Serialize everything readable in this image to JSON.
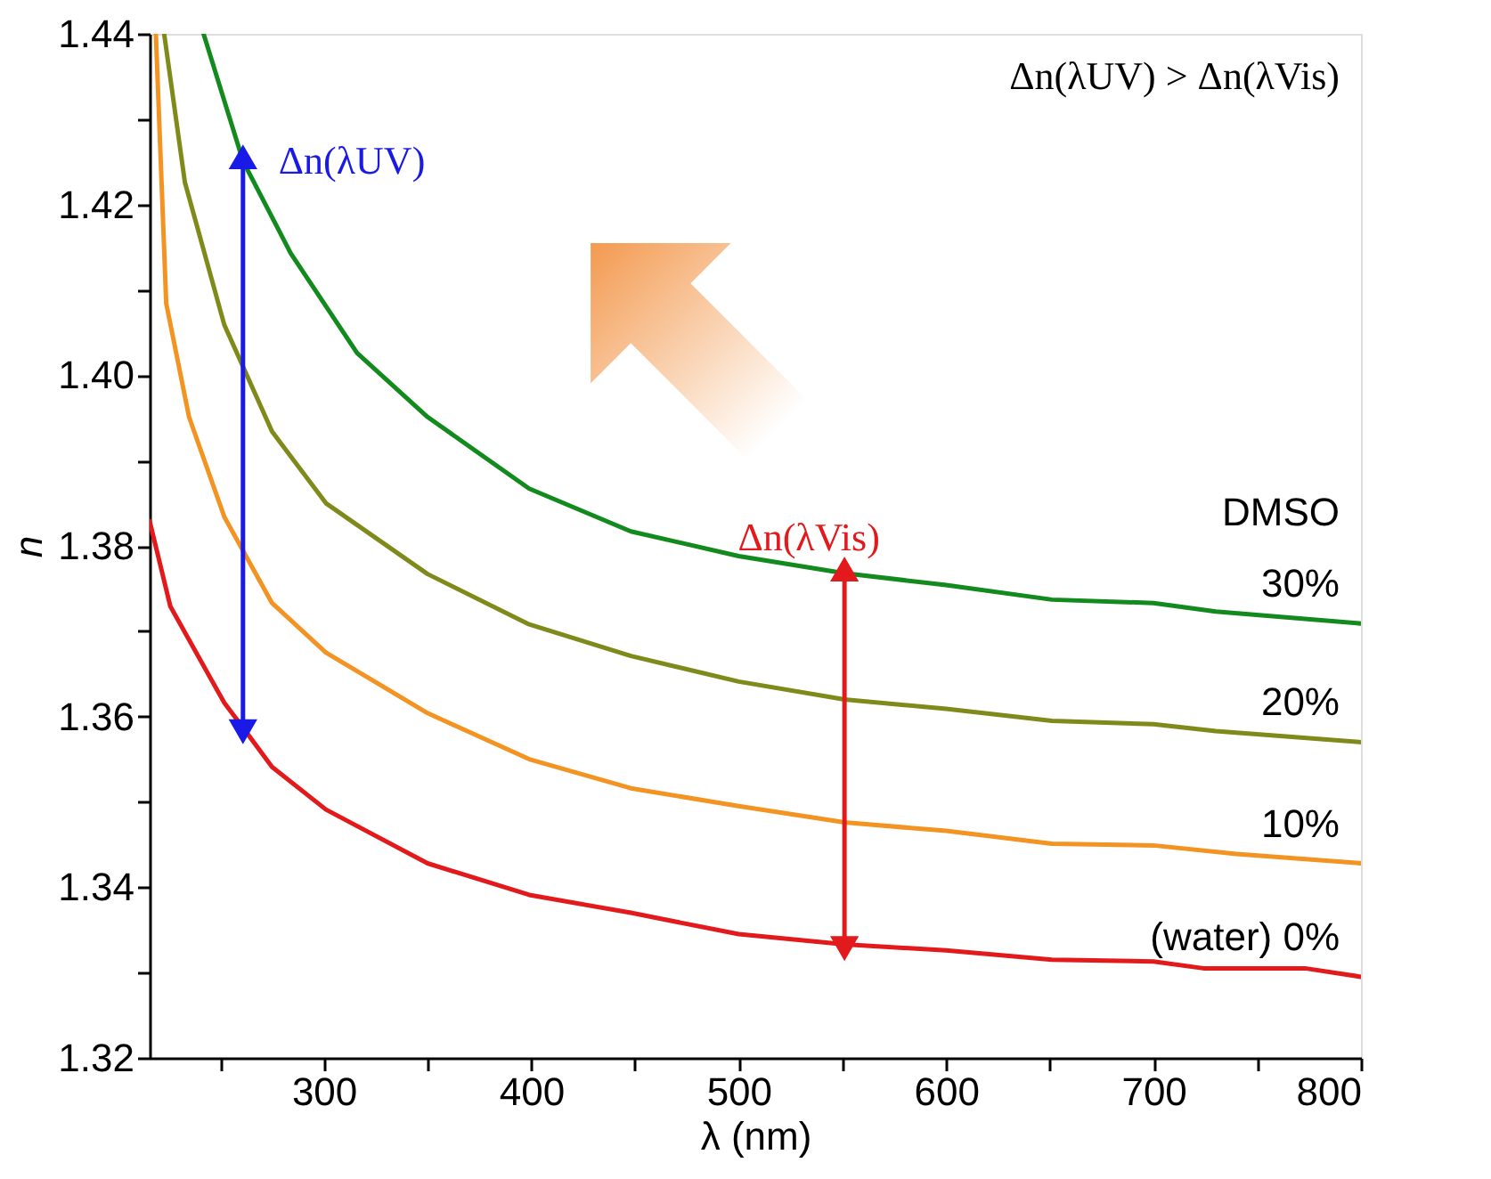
{
  "chart_data": {
    "type": "line",
    "xlabel": "λ (nm)",
    "ylabel": "n",
    "legend_title": "DMSO",
    "xlim": [
      216,
      800
    ],
    "ylim": [
      1.32,
      1.44
    ],
    "xticks": [
      {
        "value": 250,
        "label": null
      },
      300,
      {
        "value": 350,
        "label": null
      },
      400,
      {
        "value": 450,
        "label": null
      },
      500,
      {
        "value": 550,
        "label": null
      },
      600,
      {
        "value": 650,
        "label": null
      },
      700,
      {
        "value": 750,
        "label": null
      },
      800
    ],
    "yticks": [
      {
        "value": 1.32,
        "label": "1.32"
      },
      {
        "value": 1.33,
        "label": null
      },
      {
        "value": 1.34,
        "label": "1.34"
      },
      {
        "value": 1.35,
        "label": null
      },
      {
        "value": 1.36,
        "label": "1.36"
      },
      {
        "value": 1.37,
        "label": null
      },
      {
        "value": 1.38,
        "label": "1.38"
      },
      {
        "value": 1.39,
        "label": null
      },
      {
        "value": 1.4,
        "label": "1.40"
      },
      {
        "value": 1.41,
        "label": null
      },
      {
        "value": 1.42,
        "label": "1.42"
      },
      {
        "value": 1.43,
        "label": null
      },
      {
        "value": 1.44,
        "label": "1.44"
      }
    ],
    "grid": false,
    "legend": false,
    "marker": "none",
    "line_style": "solid",
    "series": [
      {
        "name": "(water) 0%",
        "color": "#e31a1c",
        "x": [
          216,
          226,
          252,
          261,
          275,
          301,
          350,
          399,
          448,
          500,
          551,
          600,
          651,
          700,
          724,
          773,
          800
        ],
        "values": [
          1.3829,
          1.3729,
          1.3616,
          1.3587,
          1.3541,
          1.3491,
          1.3428,
          1.3391,
          1.337,
          1.3345,
          1.3333,
          1.3326,
          1.3315,
          1.3313,
          1.3305,
          1.3305,
          1.3295
        ]
      },
      {
        "name": "10%",
        "color": "#f39322",
        "x": [
          219,
          224,
          235,
          252,
          275,
          301,
          350,
          399,
          448,
          500,
          551,
          600,
          651,
          700,
          740,
          800
        ],
        "values": [
          1.44,
          1.4084,
          1.3951,
          1.3834,
          1.3733,
          1.3675,
          1.3604,
          1.355,
          1.3516,
          1.3495,
          1.3476,
          1.3466,
          1.3451,
          1.3449,
          1.3439,
          1.3428
        ]
      },
      {
        "name": "20%",
        "color": "#7f8a1a",
        "x": [
          223,
          233,
          252,
          275,
          301,
          350,
          399,
          448,
          500,
          551,
          600,
          651,
          700,
          730,
          800
        ],
        "values": [
          1.44,
          1.4226,
          1.4059,
          1.3934,
          1.385,
          1.3767,
          1.3708,
          1.3671,
          1.3641,
          1.362,
          1.3609,
          1.3595,
          1.3591,
          1.3583,
          1.357
        ]
      },
      {
        "name": "30%",
        "color": "#138a1e",
        "x": [
          242,
          261,
          284,
          316,
          350,
          399,
          448,
          500,
          551,
          600,
          651,
          700,
          730,
          800
        ],
        "values": [
          1.44,
          1.4251,
          1.4143,
          1.4026,
          1.3951,
          1.3867,
          1.3817,
          1.3788,
          1.3768,
          1.3754,
          1.3737,
          1.3733,
          1.3723,
          1.3709
        ]
      }
    ],
    "annotations": [
      {
        "text": "Δn(λUV)",
        "x": 261,
        "y": 1.4251
      },
      {
        "text": "Δn(λVis)",
        "x": 551,
        "y": 1.3768
      },
      "Δn(λUV) > Δn(λVis)"
    ]
  }
}
